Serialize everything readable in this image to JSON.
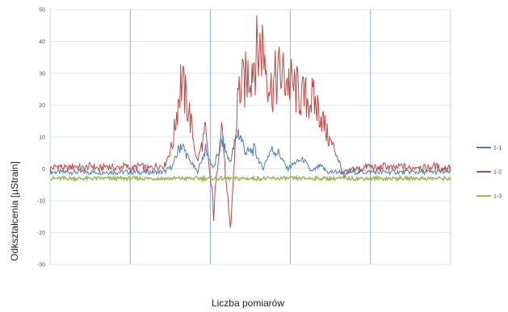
{
  "chart_data": {
    "type": "line",
    "title": "",
    "xlabel": "Liczba pomiarów",
    "ylabel": "Odkształcenia [µStrain]",
    "ylim": [
      -30,
      50
    ],
    "yticks": [
      50,
      40,
      30,
      20,
      10,
      0,
      -10,
      -20,
      -30
    ],
    "grid": true,
    "legend_position": "right",
    "series": [
      {
        "name": "1-1",
        "color": "#4a7ebb",
        "values": [
          -1,
          -1,
          -1,
          -1,
          -1,
          -1,
          -1,
          -1,
          -1,
          -1,
          -1,
          -1,
          -1,
          -1,
          -1,
          1,
          8,
          3,
          -1,
          6,
          0,
          9,
          2,
          12,
          5,
          6,
          0,
          6,
          5,
          0,
          2,
          3,
          -1,
          1,
          -1,
          -1,
          -1,
          -1,
          -1,
          -1,
          -1,
          -1,
          -1,
          -1,
          -1,
          -1,
          -1,
          -1,
          -1,
          -1
        ]
      },
      {
        "name": "1-2",
        "color": "#be4b48",
        "values": [
          0,
          1,
          0,
          1,
          0,
          1,
          0,
          1,
          0,
          1,
          0,
          1,
          0,
          1,
          1,
          8,
          28,
          18,
          2,
          12,
          -13,
          15,
          -22,
          24,
          28,
          35,
          39,
          25,
          30,
          28,
          25,
          22,
          22,
          18,
          10,
          5,
          -3,
          0,
          0,
          1,
          0,
          1,
          0,
          1,
          0,
          1,
          0,
          1,
          0,
          1
        ]
      },
      {
        "name": "1-3",
        "color": "#98b954",
        "values": [
          -3,
          -3,
          -3,
          -3,
          -3,
          -3,
          -3,
          -3,
          -3,
          -3,
          -3,
          -3,
          -3,
          -3,
          -3,
          -3,
          -3,
          -3,
          -3,
          -3,
          -3,
          -3,
          -3,
          -3,
          -3,
          -3,
          -3,
          -3,
          -3,
          -3,
          -3,
          -3,
          -3,
          -3,
          -3,
          -3,
          -3,
          -3,
          -3,
          -3,
          -3,
          -3,
          -3,
          -3,
          -3,
          -3,
          -3,
          -3,
          -3,
          -3
        ]
      }
    ]
  }
}
